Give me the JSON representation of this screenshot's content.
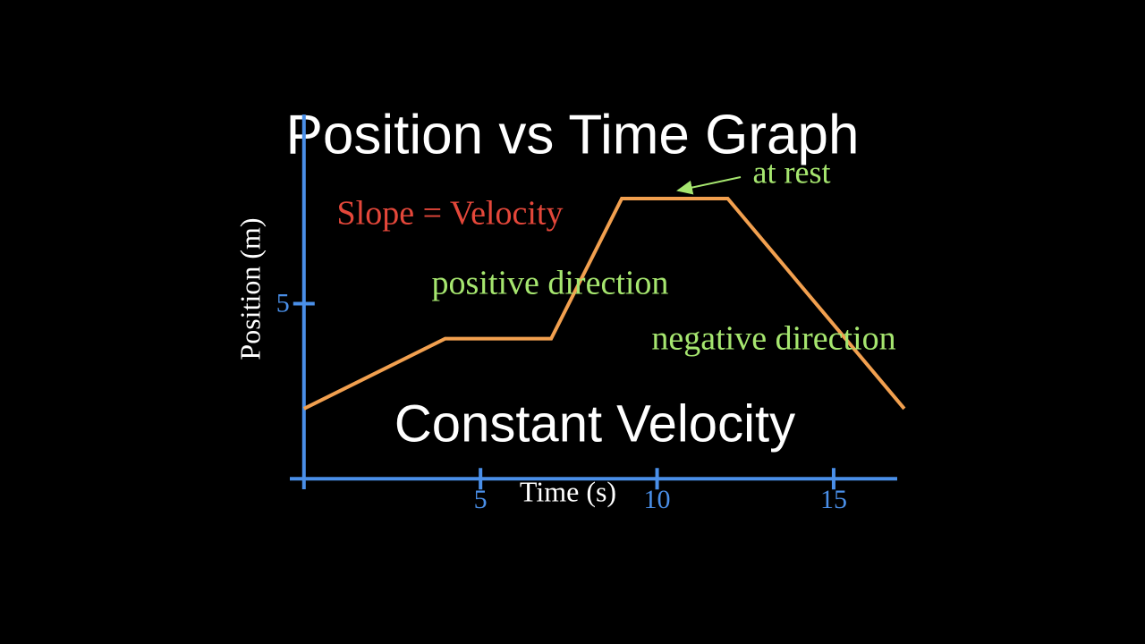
{
  "chart_data": {
    "type": "line",
    "title": "Position vs Time Graph",
    "x_label": "Time (s)",
    "y_label": "Position (m)",
    "x": [
      0,
      4,
      7,
      9,
      12,
      17
    ],
    "series": [
      {
        "color": "#f2a04f",
        "values": [
          2,
          4,
          4,
          8,
          8,
          2
        ]
      }
    ],
    "xlim": [
      -0.4,
      16.8
    ],
    "ylim": [
      -0.3,
      10.4
    ],
    "xticks": [
      5,
      10,
      15
    ],
    "yticks": [
      5
    ],
    "axis_color": "#4a8fe8",
    "annotations": [
      {
        "text": "at rest",
        "color": "#a6e66f"
      },
      {
        "text": "Slope = Velocity",
        "color": "#e4473a"
      },
      {
        "text": "positive direction",
        "color": "#a6e66f"
      },
      {
        "text": "negative direction",
        "color": "#a6e66f"
      },
      {
        "text": "Constant Velocity",
        "color": "#ffffff"
      }
    ]
  }
}
